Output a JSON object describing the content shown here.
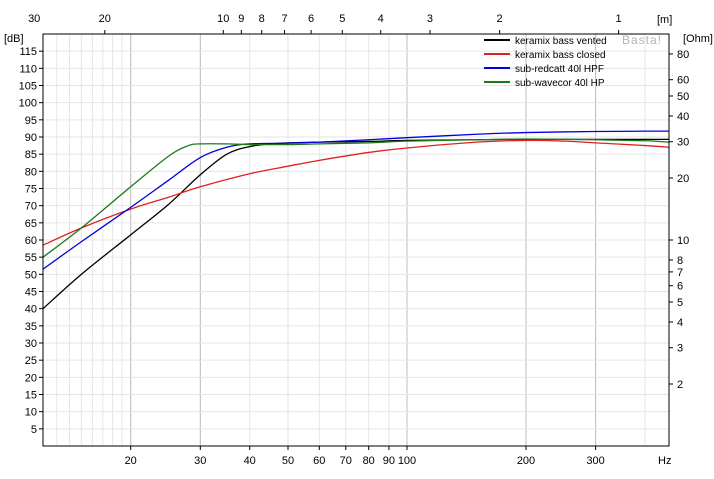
{
  "chart_data": {
    "type": "line",
    "title": "",
    "watermark": "Basta!",
    "x_scale": "log",
    "xlim": [
      12,
      460
    ],
    "x_unit": "Hz",
    "x_tick_labels": [
      "20",
      "30",
      "40",
      "50",
      "60",
      "70",
      "80",
      "90",
      "100",
      "200",
      "300"
    ],
    "x_ticks": [
      20,
      30,
      40,
      50,
      60,
      70,
      80,
      90,
      100,
      200,
      300
    ],
    "top_axis_unit": "[m]",
    "top_axis_ticks": [
      {
        "label": "30",
        "hz": 11.4
      },
      {
        "label": "20",
        "hz": 17.2
      },
      {
        "label": "10",
        "hz": 34.3
      },
      {
        "label": "9",
        "hz": 38.1
      },
      {
        "label": "8",
        "hz": 42.9
      },
      {
        "label": "7",
        "hz": 49.0
      },
      {
        "label": "6",
        "hz": 57.2
      },
      {
        "label": "5",
        "hz": 68.6
      },
      {
        "label": "4",
        "hz": 85.8
      },
      {
        "label": "3",
        "hz": 114.3
      },
      {
        "label": "2",
        "hz": 171.5
      },
      {
        "label": "1",
        "hz": 343.0
      }
    ],
    "ylabel": "[dB]",
    "ylim": [
      0,
      120
    ],
    "y_ticks": [
      5,
      10,
      15,
      20,
      25,
      30,
      35,
      40,
      45,
      50,
      55,
      60,
      65,
      70,
      75,
      80,
      85,
      90,
      95,
      100,
      105,
      110,
      115
    ],
    "y2label": "[Ohm]",
    "y2_scale": "log",
    "y2lim": [
      1,
      100
    ],
    "y2_ticks": [
      2,
      3,
      4,
      5,
      6,
      7,
      8,
      10,
      20,
      30,
      40,
      50,
      60,
      80
    ],
    "grid": true,
    "legend_position": "top-right",
    "series": [
      {
        "name": "keramix bass vented",
        "color": "#000000",
        "x": [
          12,
          15,
          20,
          25,
          30,
          35,
          40,
          45,
          50,
          60,
          80,
          100,
          150,
          200,
          300,
          460
        ],
        "y": [
          40,
          50,
          61.5,
          70.5,
          79,
          85,
          87.2,
          88,
          88.3,
          88.5,
          88.7,
          89,
          89.2,
          89.3,
          89.3,
          89.3
        ]
      },
      {
        "name": "keramix bass closed",
        "color": "#e02020",
        "x": [
          12,
          15,
          20,
          25,
          30,
          40,
          50,
          60,
          80,
          100,
          150,
          200,
          250,
          300,
          400,
          460
        ],
        "y": [
          58.5,
          63.5,
          69,
          72.5,
          75.5,
          79.3,
          81.5,
          83.2,
          85.5,
          86.8,
          88.5,
          89,
          88.8,
          88.3,
          87.5,
          87
        ]
      },
      {
        "name": "sub-redcatt 40l HPF",
        "color": "#0000e0",
        "x": [
          12,
          15,
          20,
          25,
          30,
          35,
          40,
          50,
          60,
          80,
          100,
          150,
          200,
          300,
          400,
          460
        ],
        "y": [
          51.5,
          59.5,
          69.5,
          77.5,
          84,
          87,
          88,
          88.2,
          88.5,
          89.2,
          89.8,
          90.8,
          91.3,
          91.6,
          91.7,
          91.7
        ]
      },
      {
        "name": "sub-wavecor 40l HP",
        "color": "#1a7a1a",
        "x": [
          12,
          15,
          20,
          25,
          28,
          30,
          35,
          40,
          50,
          60,
          80,
          100,
          150,
          200,
          300,
          400,
          460
        ],
        "y": [
          55,
          63.5,
          75.5,
          84.5,
          87.5,
          88,
          88,
          87.8,
          87.8,
          88,
          88.3,
          88.8,
          89.2,
          89.4,
          89.2,
          88.9,
          88.5
        ]
      }
    ]
  }
}
